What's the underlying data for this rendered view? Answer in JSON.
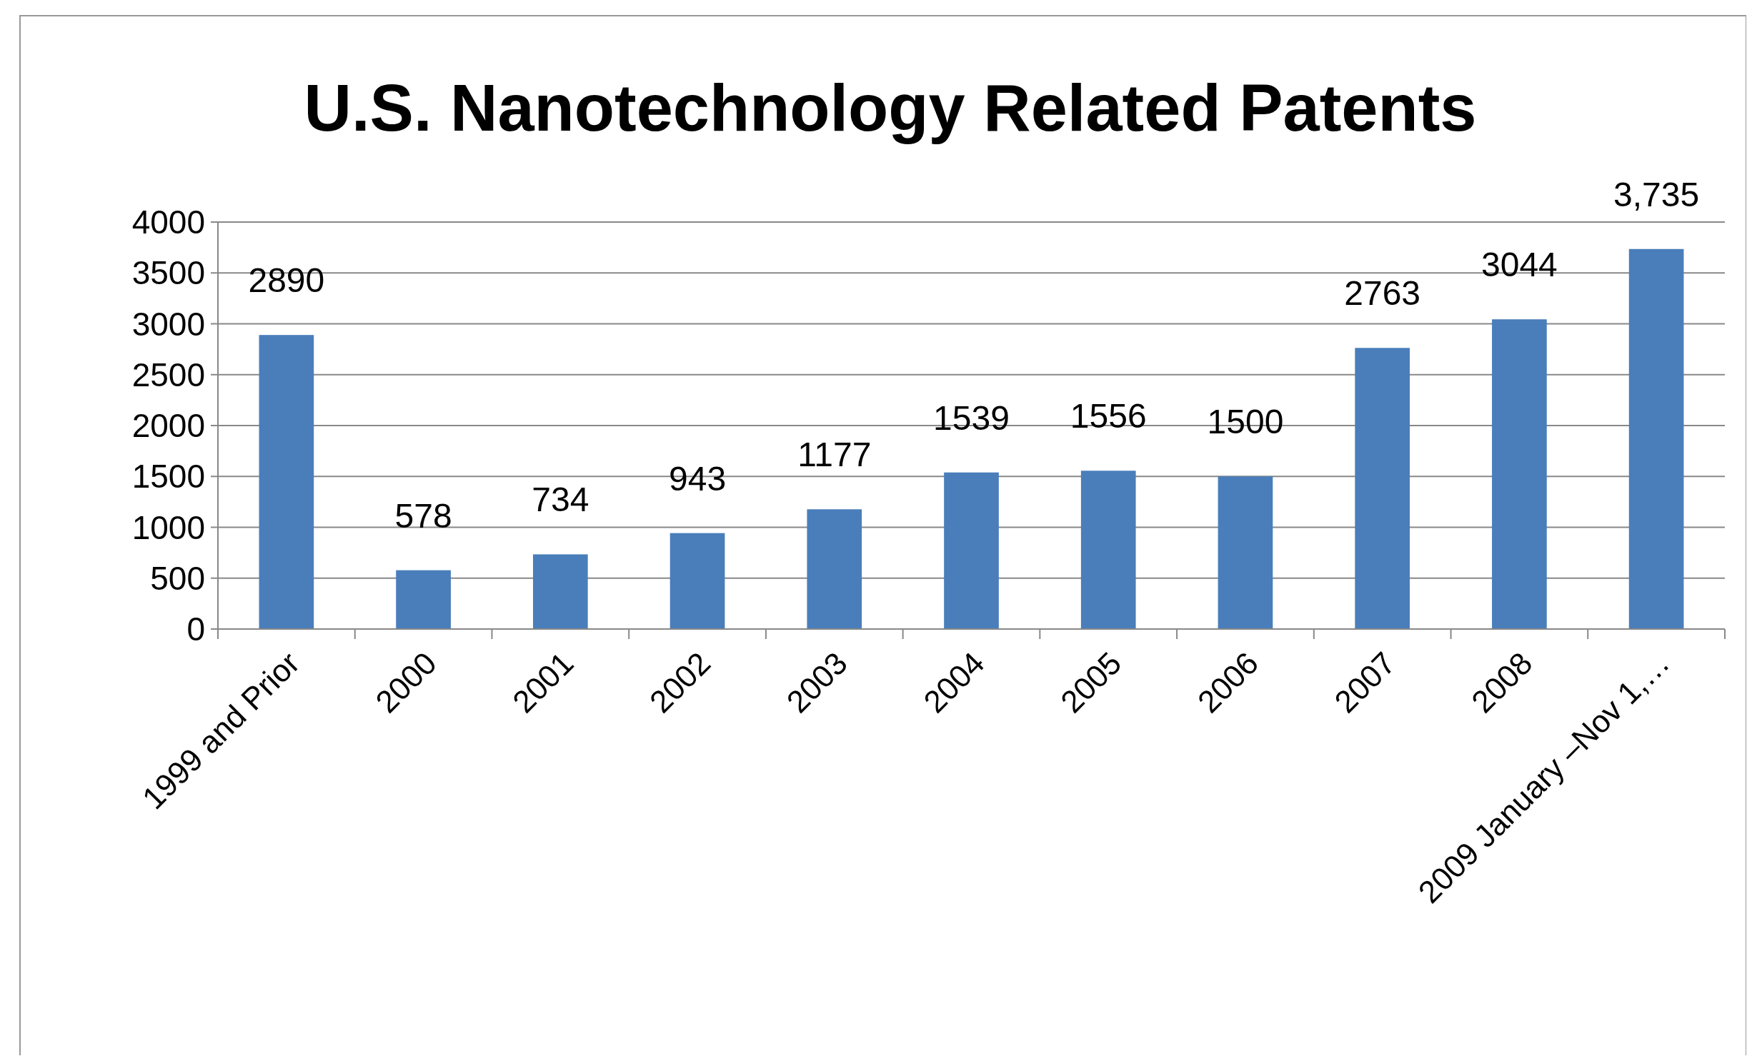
{
  "chart_data": {
    "type": "bar",
    "title": "U.S. Nanotechnology Related Patents",
    "categories": [
      "1999 and Prior",
      "2000",
      "2001",
      "2002",
      "2003",
      "2004",
      "2005",
      "2006",
      "2007",
      "2008",
      "2009 January –Nov 1,…"
    ],
    "values": [
      2890,
      578,
      734,
      943,
      1177,
      1539,
      1556,
      1500,
      2763,
      3044,
      3735
    ],
    "value_labels": [
      "2890",
      "578",
      "734",
      "943",
      "1177",
      "1539",
      "1556",
      "1500",
      "2763",
      "3044",
      "3,735"
    ],
    "color": "#4a7ebb",
    "ylim": [
      0,
      4000
    ],
    "yticks": [
      0,
      500,
      1000,
      1500,
      2000,
      2500,
      3000,
      3500,
      4000
    ],
    "grid": "y"
  }
}
